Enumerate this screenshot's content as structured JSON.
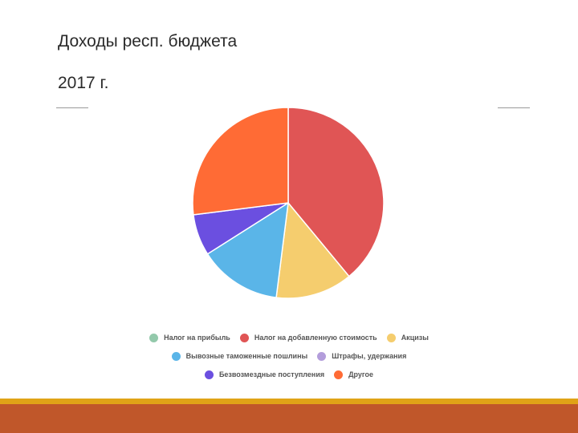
{
  "slide": {
    "title_line1": "Доходы респ. бюджета",
    "title_line2": "2017 г."
  },
  "chart_data": {
    "type": "pie",
    "title": "",
    "series": [
      {
        "name": "Налог на прибыль",
        "value": 0,
        "color": "#93c9ab"
      },
      {
        "name": "Налог на добавленную стоимость",
        "value": 39,
        "color": "#e05555"
      },
      {
        "name": "Акцизы",
        "value": 13,
        "color": "#f5cd6e"
      },
      {
        "name": "Вывозные таможенные пошлины",
        "value": 14,
        "color": "#5ab5e8"
      },
      {
        "name": "Штрафы, удержания",
        "value": 0,
        "color": "#b39ddb"
      },
      {
        "name": "Безвозмездные поступления",
        "value": 7,
        "color": "#6b4fe0"
      },
      {
        "name": "Другое",
        "value": 27,
        "color": "#ff6b35"
      }
    ],
    "legend_position": "bottom"
  },
  "colors": {
    "footer_bar": "#c0572a",
    "footer_accent": "#e0a317"
  }
}
